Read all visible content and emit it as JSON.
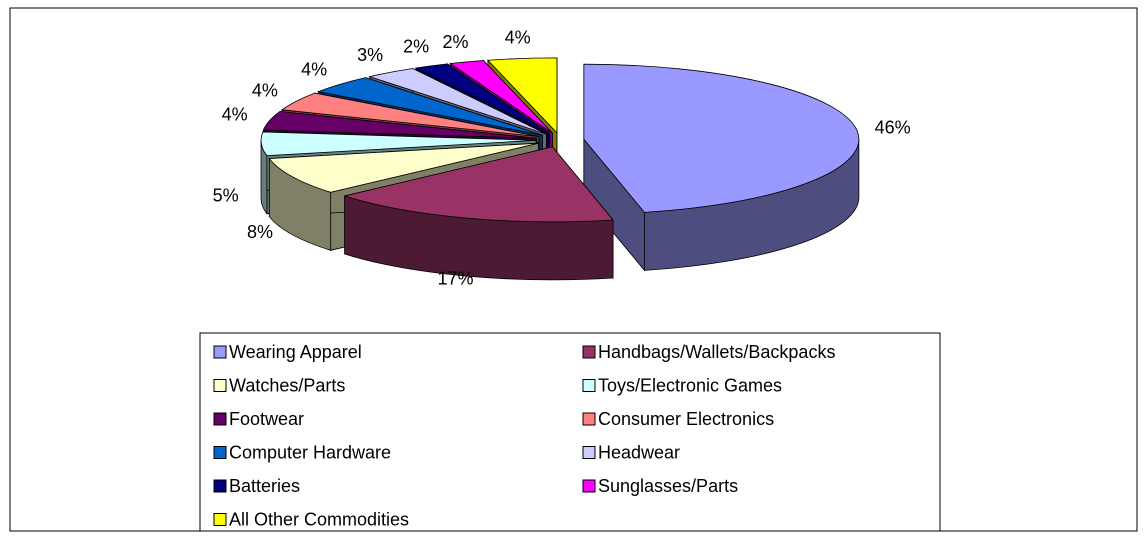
{
  "chart_data": {
    "type": "pie3d",
    "categories": [
      "Wearing Apparel",
      "Handbags/Wallets/Backpacks",
      "Watches/Parts",
      "Toys/Electronic Games",
      "Footwear",
      "Consumer Electronics",
      "Computer Hardware",
      "Headwear",
      "Batteries",
      "Sunglasses/Parts",
      "All Other Commodities"
    ],
    "values": [
      46,
      17,
      8,
      5,
      4,
      4,
      4,
      3,
      2,
      2,
      4
    ],
    "value_labels": [
      "46%",
      "17%",
      "8%",
      "5%",
      "4%",
      "4%",
      "4%",
      "3%",
      "2%",
      "2%",
      "4%"
    ],
    "colors": [
      "#9999ff",
      "#993366",
      "#ffffcc",
      "#ccffff",
      "#660066",
      "#ff8080",
      "#0066cc",
      "#ccccff",
      "#000080",
      "#ff00ff",
      "#ffff00"
    ],
    "legend": "bottom"
  }
}
